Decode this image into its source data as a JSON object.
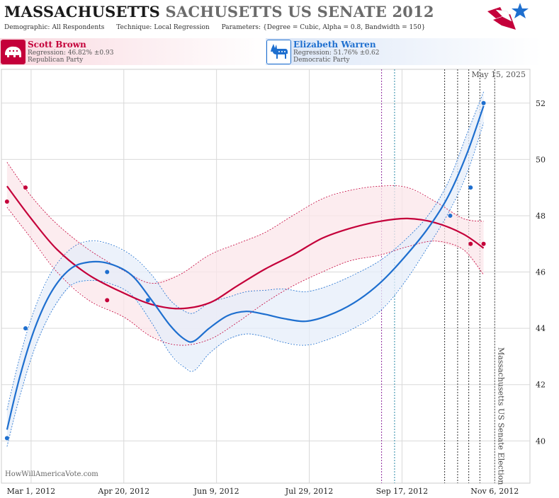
{
  "header": {
    "title_bold": "MASSACHUSETTS",
    "title_rest": "SACHUSETTS US SENATE 2012",
    "params": [
      {
        "key": "Demographic:",
        "value": "All Respondents"
      },
      {
        "key": "Technique:",
        "value": "Local Regression"
      },
      {
        "key": "Parameters:",
        "value": "{Degree = Cubic, Alpha = 0.8, Bandwidth = 150}"
      }
    ]
  },
  "candidates": [
    {
      "name": "Scott Brown",
      "regression": "Regression: 46.82% ±0.93",
      "party": "Republican Party",
      "icon": "elephant-icon"
    },
    {
      "name": "Elizabeth Warren",
      "regression": "Regression: 51.76% ±0.62",
      "party": "Democratic Party",
      "icon": "donkey-icon"
    }
  ],
  "colors": {
    "republican": "#c4003a",
    "democrat": "#1e6fcf",
    "rep_band": "#fbe6ea",
    "dem_band": "#e6eefa",
    "grid": "#d9d9d9"
  },
  "chart_data": {
    "type": "line",
    "date_label": "May 15, 2025",
    "watermark": "HowWillAmericaVote.com",
    "event_label": "Massachusetts US Senate Election",
    "x_tick_labels": [
      "Mar 1, 2012",
      "Apr 20, 2012",
      "Jun 9, 2012",
      "Jul 29, 2012",
      "Sep 17, 2012",
      "Nov 6, 2012"
    ],
    "x_ticks": [
      "2012-03-01",
      "2012-04-20",
      "2012-06-09",
      "2012-07-29",
      "2012-09-17",
      "2012-11-06"
    ],
    "xlim": [
      "2012-02-14",
      "2012-11-25"
    ],
    "ylim": [
      38.5,
      53.2
    ],
    "y_ticks": [
      40,
      42,
      44,
      46,
      48,
      50,
      52
    ],
    "grid": true,
    "event_date": "2012-11-06",
    "vlines": [
      {
        "x": "2012-09-06",
        "color": "purple"
      },
      {
        "x": "2012-09-13",
        "color": "teal"
      },
      {
        "x": "2012-10-10",
        "color": "black"
      },
      {
        "x": "2012-10-17",
        "color": "black"
      },
      {
        "x": "2012-10-23",
        "color": "black"
      },
      {
        "x": "2012-10-29",
        "color": "black"
      }
    ],
    "series": [
      {
        "name": "Scott Brown",
        "color": "#c4003a",
        "points": [
          [
            "2012-02-17",
            48.5
          ],
          [
            "2012-02-27",
            49.0
          ],
          [
            "2012-04-11",
            45.0
          ],
          [
            "2012-10-24",
            47.0
          ],
          [
            "2012-10-31",
            47.0
          ]
        ],
        "curve": [
          [
            "2012-02-17",
            49.05
          ],
          [
            "2012-03-01",
            47.9
          ],
          [
            "2012-03-15",
            46.8
          ],
          [
            "2012-04-01",
            45.9
          ],
          [
            "2012-04-20",
            45.25
          ],
          [
            "2012-05-05",
            44.85
          ],
          [
            "2012-05-20",
            44.7
          ],
          [
            "2012-06-05",
            44.9
          ],
          [
            "2012-06-20",
            45.5
          ],
          [
            "2012-07-05",
            46.1
          ],
          [
            "2012-07-20",
            46.6
          ],
          [
            "2012-08-05",
            47.2
          ],
          [
            "2012-08-20",
            47.55
          ],
          [
            "2012-09-05",
            47.8
          ],
          [
            "2012-09-20",
            47.9
          ],
          [
            "2012-10-05",
            47.75
          ],
          [
            "2012-10-20",
            47.35
          ],
          [
            "2012-10-31",
            46.85
          ]
        ],
        "upper": [
          [
            "2012-02-17",
            49.9
          ],
          [
            "2012-03-01",
            48.7
          ],
          [
            "2012-03-15",
            47.7
          ],
          [
            "2012-04-01",
            46.8
          ],
          [
            "2012-04-20",
            46.05
          ],
          [
            "2012-05-05",
            45.6
          ],
          [
            "2012-05-20",
            45.9
          ],
          [
            "2012-06-05",
            46.6
          ],
          [
            "2012-06-20",
            47.0
          ],
          [
            "2012-07-05",
            47.4
          ],
          [
            "2012-07-20",
            48.0
          ],
          [
            "2012-08-05",
            48.6
          ],
          [
            "2012-08-20",
            48.9
          ],
          [
            "2012-09-05",
            49.05
          ],
          [
            "2012-09-20",
            49.0
          ],
          [
            "2012-10-05",
            48.5
          ],
          [
            "2012-10-20",
            47.9
          ],
          [
            "2012-10-31",
            47.8
          ]
        ],
        "lower": [
          [
            "2012-02-17",
            48.3
          ],
          [
            "2012-03-01",
            47.2
          ],
          [
            "2012-03-15",
            46.0
          ],
          [
            "2012-04-01",
            45.0
          ],
          [
            "2012-04-20",
            44.4
          ],
          [
            "2012-05-05",
            43.7
          ],
          [
            "2012-05-20",
            43.4
          ],
          [
            "2012-06-05",
            43.6
          ],
          [
            "2012-06-20",
            44.2
          ],
          [
            "2012-07-05",
            44.9
          ],
          [
            "2012-07-20",
            45.5
          ],
          [
            "2012-08-05",
            46.0
          ],
          [
            "2012-08-20",
            46.4
          ],
          [
            "2012-09-05",
            46.6
          ],
          [
            "2012-09-20",
            46.9
          ],
          [
            "2012-10-05",
            47.1
          ],
          [
            "2012-10-20",
            46.8
          ],
          [
            "2012-10-31",
            45.9
          ]
        ]
      },
      {
        "name": "Elizabeth Warren",
        "color": "#1e6fcf",
        "points": [
          [
            "2012-02-17",
            40.1
          ],
          [
            "2012-02-27",
            44.0
          ],
          [
            "2012-04-11",
            46.0
          ],
          [
            "2012-05-03",
            45.0
          ],
          [
            "2012-10-13",
            48.0
          ],
          [
            "2012-10-24",
            49.0
          ],
          [
            "2012-10-31",
            52.0
          ]
        ],
        "curve": [
          [
            "2012-02-17",
            40.4
          ],
          [
            "2012-02-24",
            42.3
          ],
          [
            "2012-03-03",
            44.0
          ],
          [
            "2012-03-12",
            45.3
          ],
          [
            "2012-03-22",
            46.1
          ],
          [
            "2012-04-01",
            46.35
          ],
          [
            "2012-04-12",
            46.3
          ],
          [
            "2012-04-24",
            45.9
          ],
          [
            "2012-05-05",
            45.0
          ],
          [
            "2012-05-15",
            44.1
          ],
          [
            "2012-05-23",
            43.6
          ],
          [
            "2012-05-28",
            43.55
          ],
          [
            "2012-06-05",
            44.0
          ],
          [
            "2012-06-15",
            44.45
          ],
          [
            "2012-06-25",
            44.6
          ],
          [
            "2012-07-05",
            44.5
          ],
          [
            "2012-07-15",
            44.35
          ],
          [
            "2012-07-27",
            44.25
          ],
          [
            "2012-08-08",
            44.45
          ],
          [
            "2012-08-22",
            44.9
          ],
          [
            "2012-09-05",
            45.6
          ],
          [
            "2012-09-18",
            46.5
          ],
          [
            "2012-10-01",
            47.55
          ],
          [
            "2012-10-12",
            48.7
          ],
          [
            "2012-10-22",
            50.2
          ],
          [
            "2012-10-31",
            51.9
          ]
        ],
        "upper": [
          [
            "2012-02-17",
            41.1
          ],
          [
            "2012-02-24",
            43.0
          ],
          [
            "2012-03-03",
            44.7
          ],
          [
            "2012-03-12",
            46.0
          ],
          [
            "2012-03-22",
            46.8
          ],
          [
            "2012-04-01",
            47.1
          ],
          [
            "2012-04-12",
            47.0
          ],
          [
            "2012-04-24",
            46.6
          ],
          [
            "2012-05-05",
            45.9
          ],
          [
            "2012-05-15",
            45.0
          ],
          [
            "2012-05-23",
            44.6
          ],
          [
            "2012-05-28",
            44.55
          ],
          [
            "2012-06-05",
            44.9
          ],
          [
            "2012-06-15",
            45.1
          ],
          [
            "2012-06-25",
            45.3
          ],
          [
            "2012-07-05",
            45.35
          ],
          [
            "2012-07-15",
            45.4
          ],
          [
            "2012-07-27",
            45.3
          ],
          [
            "2012-08-08",
            45.5
          ],
          [
            "2012-08-22",
            45.9
          ],
          [
            "2012-09-05",
            46.4
          ],
          [
            "2012-09-18",
            47.1
          ],
          [
            "2012-10-01",
            48.0
          ],
          [
            "2012-10-12",
            49.2
          ],
          [
            "2012-10-22",
            50.9
          ],
          [
            "2012-10-31",
            52.4
          ]
        ],
        "lower": [
          [
            "2012-02-17",
            39.8
          ],
          [
            "2012-02-24",
            41.6
          ],
          [
            "2012-03-03",
            43.3
          ],
          [
            "2012-03-12",
            44.6
          ],
          [
            "2012-03-22",
            45.5
          ],
          [
            "2012-04-01",
            45.7
          ],
          [
            "2012-04-12",
            45.6
          ],
          [
            "2012-04-24",
            45.2
          ],
          [
            "2012-05-05",
            44.2
          ],
          [
            "2012-05-15",
            43.1
          ],
          [
            "2012-05-23",
            42.6
          ],
          [
            "2012-05-28",
            42.5
          ],
          [
            "2012-06-05",
            43.1
          ],
          [
            "2012-06-15",
            43.6
          ],
          [
            "2012-06-25",
            43.8
          ],
          [
            "2012-07-05",
            43.7
          ],
          [
            "2012-07-15",
            43.5
          ],
          [
            "2012-07-27",
            43.4
          ],
          [
            "2012-08-08",
            43.6
          ],
          [
            "2012-08-22",
            44.0
          ],
          [
            "2012-09-05",
            44.6
          ],
          [
            "2012-09-18",
            45.6
          ],
          [
            "2012-10-01",
            46.9
          ],
          [
            "2012-10-12",
            48.1
          ],
          [
            "2012-10-22",
            49.5
          ],
          [
            "2012-10-31",
            51.3
          ]
        ]
      }
    ]
  }
}
